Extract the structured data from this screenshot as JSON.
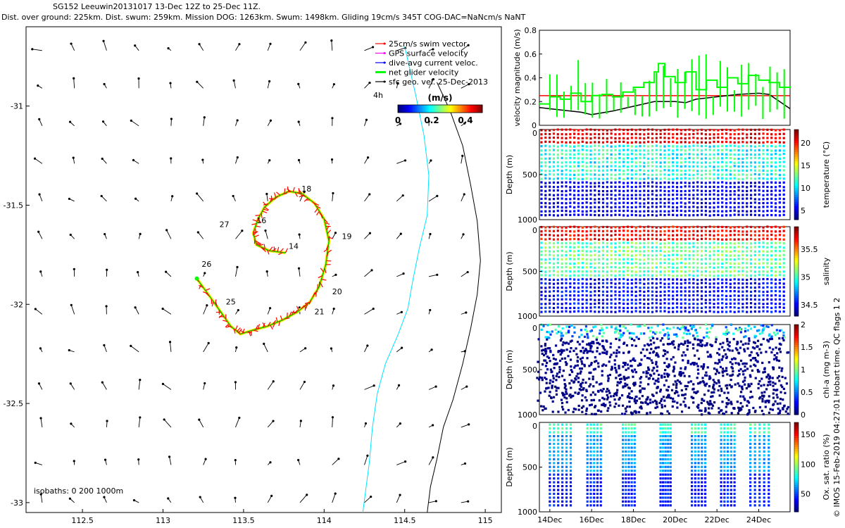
{
  "header": {
    "title": "SG152 Leeuwin20131017 13-Dec 12Z to 25-Dec 11Z.",
    "subtitle": "Dist. over ground: 225km. Dist. swum: 259km. Mission DOG: 1263km. Swum: 1498km. Gliding 19cm/s 345T COG-DAC=NaNcm/s NaNT"
  },
  "credit": "© IMOS 15-Feb-2019 04:27:01 Hobart time. QC flags 1  2",
  "chart_data": [
    {
      "type": "scatter",
      "role": "map",
      "xlim": [
        112.15,
        115.1
      ],
      "ylim": [
        -33.05,
        -30.6
      ],
      "xticks": [
        112.5,
        113,
        113.5,
        114,
        114.5,
        115
      ],
      "xtick_labels": [
        "112.5",
        "113",
        "113.5",
        "114",
        "114.5",
        "115"
      ],
      "yticks": [
        -31,
        -31.5,
        -32,
        -32.5,
        -33
      ],
      "ytick_labels": [
        "-31",
        "-31.5",
        "-32",
        "-32.5",
        "-33"
      ],
      "legend": {
        "position": "top-right",
        "entries": [
          {
            "label": "25cm/s swim vector",
            "color": "#ff0000"
          },
          {
            "label": "GPS surface velocity",
            "color": "#ff00ff"
          },
          {
            "label": "dive-avg current veloc.",
            "color": "#0000ff"
          },
          {
            "label": "net glider velocity",
            "color": "#00ff00"
          },
          {
            "label": "sfc geo. vel. 25-Dec-2013",
            "color": "#000000"
          }
        ]
      },
      "corner_label": "4h",
      "colorbar": {
        "label": "(m/s)",
        "ticks": [
          "0",
          "0.2",
          "0.4"
        ],
        "range": [
          0,
          0.5
        ]
      },
      "isobaths_label": "isobaths: 0   200  1000m",
      "day_labels": [
        {
          "t": "18",
          "lon": 113.86,
          "lat": -31.43
        },
        {
          "t": "16",
          "lon": 113.58,
          "lat": -31.59
        },
        {
          "t": "27",
          "lon": 113.35,
          "lat": -31.61
        },
        {
          "t": "19",
          "lon": 114.11,
          "lat": -31.67
        },
        {
          "t": "14",
          "lon": 113.78,
          "lat": -31.72
        },
        {
          "t": "26",
          "lon": 113.24,
          "lat": -31.81
        },
        {
          "t": "20",
          "lon": 114.05,
          "lat": -31.95
        },
        {
          "t": "25",
          "lon": 113.39,
          "lat": -32.0
        },
        {
          "t": "21",
          "lon": 113.94,
          "lat": -32.05
        }
      ],
      "track": [
        [
          113.76,
          -31.74
        ],
        [
          113.66,
          -31.73
        ],
        [
          113.58,
          -31.7
        ],
        [
          113.56,
          -31.64
        ],
        [
          113.59,
          -31.57
        ],
        [
          113.63,
          -31.51
        ],
        [
          113.7,
          -31.46
        ],
        [
          113.78,
          -31.43
        ],
        [
          113.86,
          -31.44
        ],
        [
          113.94,
          -31.49
        ],
        [
          114.0,
          -31.57
        ],
        [
          114.03,
          -31.68
        ],
        [
          114.01,
          -31.8
        ],
        [
          113.97,
          -31.91
        ],
        [
          113.91,
          -31.99
        ],
        [
          113.83,
          -32.04
        ],
        [
          113.74,
          -32.08
        ],
        [
          113.65,
          -32.11
        ],
        [
          113.56,
          -32.13
        ],
        [
          113.48,
          -32.15
        ],
        [
          113.42,
          -32.11
        ],
        [
          113.36,
          -32.04
        ],
        [
          113.29,
          -31.96
        ],
        [
          113.21,
          -31.87
        ]
      ],
      "coastline": [
        [
          114.7,
          -30.88
        ],
        [
          114.78,
          -31.02
        ],
        [
          114.86,
          -31.2
        ],
        [
          114.91,
          -31.4
        ],
        [
          114.95,
          -31.58
        ],
        [
          114.97,
          -31.78
        ],
        [
          114.95,
          -31.95
        ],
        [
          114.91,
          -32.12
        ],
        [
          114.86,
          -32.3
        ],
        [
          114.8,
          -32.48
        ],
        [
          114.74,
          -32.62
        ],
        [
          114.7,
          -32.78
        ],
        [
          114.66,
          -32.92
        ],
        [
          114.64,
          -33.05
        ]
      ],
      "isobath_200m": [
        [
          114.5,
          -30.7
        ],
        [
          114.57,
          -30.95
        ],
        [
          114.62,
          -31.15
        ],
        [
          114.65,
          -31.35
        ],
        [
          114.64,
          -31.55
        ],
        [
          114.59,
          -31.72
        ],
        [
          114.55,
          -31.88
        ],
        [
          114.52,
          -32.02
        ],
        [
          114.46,
          -32.15
        ],
        [
          114.38,
          -32.3
        ],
        [
          114.33,
          -32.45
        ],
        [
          114.3,
          -32.62
        ],
        [
          114.28,
          -32.8
        ],
        [
          114.24,
          -33.05
        ]
      ]
    },
    {
      "type": "line",
      "role": "velocity-timeseries",
      "ylabel": "velocity magnitude (m/s)",
      "xlim": [
        13.5,
        25.5
      ],
      "ylim": [
        0,
        0.8
      ],
      "yticks": [
        0,
        0.2,
        0.4,
        0.6,
        0.8
      ],
      "reference_line": {
        "value": 0.25,
        "color": "#ff0000"
      },
      "series": [
        {
          "color": "#00ff00",
          "x": [
            13.5,
            14.0,
            14.5,
            15.0,
            15.5,
            16.0,
            16.5,
            17.0,
            17.5,
            18.0,
            18.5,
            19.0,
            19.2,
            19.5,
            20.0,
            20.5,
            21.0,
            21.5,
            22.0,
            22.5,
            23.0,
            23.5,
            24.0,
            24.5,
            25.0,
            25.5
          ],
          "values": [
            0.18,
            0.24,
            0.22,
            0.27,
            0.2,
            0.25,
            0.26,
            0.24,
            0.28,
            0.32,
            0.36,
            0.45,
            0.52,
            0.41,
            0.36,
            0.45,
            0.3,
            0.38,
            0.32,
            0.4,
            0.35,
            0.42,
            0.38,
            0.36,
            0.32,
            0.33
          ]
        },
        {
          "color": "#000000",
          "x": [
            13.5,
            14.5,
            15.5,
            16.0,
            17.0,
            18.0,
            19.0,
            20.0,
            20.5,
            21.0,
            22.0,
            23.0,
            24.0,
            24.5,
            25.0,
            25.5
          ],
          "values": [
            0.15,
            0.13,
            0.11,
            0.09,
            0.12,
            0.16,
            0.2,
            0.2,
            0.19,
            0.22,
            0.24,
            0.26,
            0.27,
            0.26,
            0.2,
            0.14
          ]
        }
      ]
    },
    {
      "type": "scatter",
      "role": "depth-section",
      "ylabel": "Depth (m)",
      "clabel": "temperature (°C)",
      "colorscale": "jet",
      "clim": [
        3,
        23
      ],
      "cticks": [
        5,
        10,
        15,
        20
      ],
      "ylim": [
        0,
        1000
      ],
      "yticks": [
        0,
        500,
        1000
      ],
      "surface_range": [
        20,
        22
      ],
      "mid_range": [
        9,
        13
      ],
      "deep_range": [
        4,
        6
      ]
    },
    {
      "type": "scatter",
      "role": "depth-section",
      "ylabel": "Depth (m)",
      "clabel": "salinity",
      "colorscale": "jet",
      "clim": [
        34.3,
        35.9
      ],
      "cticks": [
        34.5,
        35,
        35.5
      ],
      "ylim": [
        0,
        1000
      ],
      "yticks": [
        0,
        500,
        1000
      ],
      "surface_range": [
        35.6,
        35.8
      ],
      "mid_range": [
        34.9,
        35.2
      ],
      "deep_range": [
        34.4,
        34.6
      ]
    },
    {
      "type": "scatter",
      "role": "depth-section",
      "ylabel": "Depth (m)",
      "clabel": "chl-a (mg m-3)",
      "colorscale": "jet",
      "clim": [
        0,
        2
      ],
      "cticks": [
        0,
        0.5,
        1,
        1.5,
        2
      ],
      "ylim": [
        0,
        1000
      ],
      "yticks": [
        0,
        500,
        1000
      ],
      "surface_range": [
        0.3,
        1.0
      ],
      "mid_range": [
        0.0,
        0.05
      ],
      "deep_range": [
        0.0,
        0.02
      ]
    },
    {
      "type": "scatter",
      "role": "depth-section",
      "ylabel": "Depth (m)",
      "clabel": "Ox. sat. ratio (%)",
      "colorscale": "jet",
      "clim": [
        20,
        170
      ],
      "cticks": [
        50,
        100,
        150
      ],
      "ylim": [
        0,
        1000
      ],
      "yticks": [
        0,
        500,
        1000
      ],
      "xticks": [
        14,
        16,
        18,
        20,
        22,
        24
      ],
      "xtick_labels": [
        "14Dec",
        "16Dec",
        "18Dec",
        "20Dec",
        "22Dec",
        "24Dec"
      ],
      "surface_range": [
        75,
        95
      ],
      "mid_range": [
        55,
        70
      ],
      "deep_range": [
        35,
        50
      ]
    }
  ]
}
